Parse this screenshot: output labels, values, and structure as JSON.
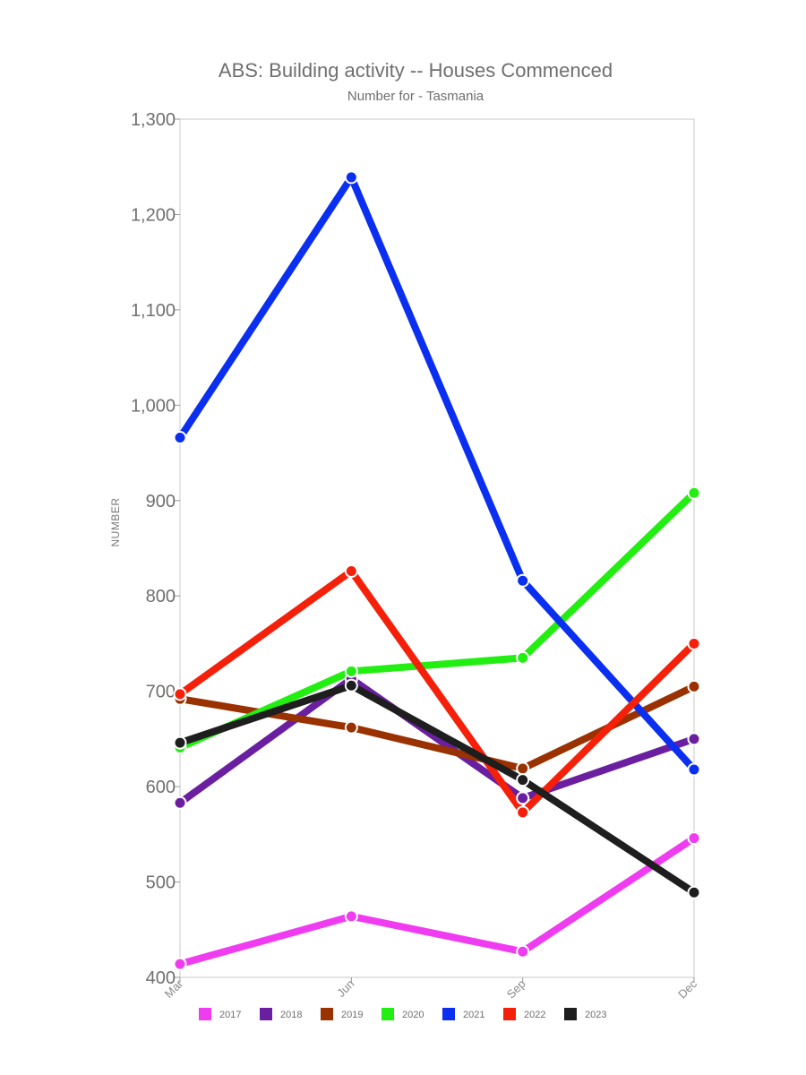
{
  "chart_data": {
    "type": "line",
    "title": "ABS: Building activity -- Houses Commenced",
    "subtitle": "Number for - Tasmania",
    "xlabel": "",
    "ylabel": "NUMBER",
    "categories": [
      "Mar",
      "Jun",
      "Sep",
      "Dec"
    ],
    "ylim": [
      400,
      1300
    ],
    "yticks": [
      400,
      500,
      600,
      700,
      800,
      900,
      1000,
      1100,
      1200,
      1300
    ],
    "ytick_labels": [
      "400",
      "500",
      "600",
      "700",
      "800",
      "900",
      "1,000",
      "1,100",
      "1,200",
      "1,300"
    ],
    "grid": false,
    "legend_position": "bottom",
    "series": [
      {
        "name": "2017",
        "color": "#f03cf0",
        "values": [
          414,
          464,
          427,
          546
        ]
      },
      {
        "name": "2018",
        "color": "#6a1fa0",
        "values": [
          583,
          713,
          588,
          650
        ]
      },
      {
        "name": "2019",
        "color": "#9a3100",
        "values": [
          692,
          662,
          619,
          705
        ]
      },
      {
        "name": "2020",
        "color": "#22ee11",
        "values": [
          641,
          721,
          735,
          908
        ]
      },
      {
        "name": "2021",
        "color": "#0a2ff0",
        "values": [
          966,
          1239,
          816,
          618
        ]
      },
      {
        "name": "2022",
        "color": "#f5200a",
        "values": [
          697,
          826,
          573,
          750
        ]
      },
      {
        "name": "2023",
        "color": "#1e1e1e",
        "values": [
          646,
          706,
          607,
          489
        ]
      }
    ]
  }
}
